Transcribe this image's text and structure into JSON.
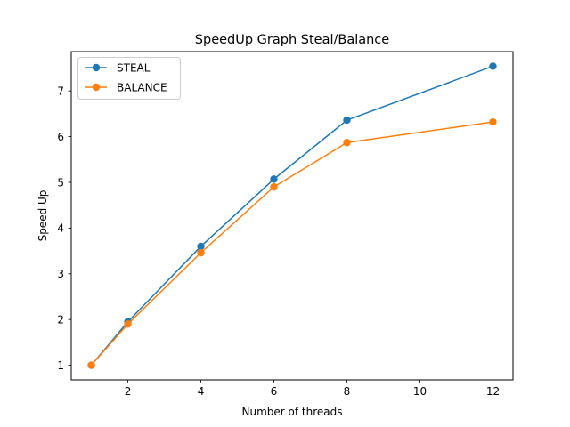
{
  "chart_data": {
    "type": "line",
    "title": "SpeedUp Graph Steal/Balance",
    "xlabel": "Number of threads",
    "ylabel": "Speed Up",
    "x": [
      1,
      2,
      4,
      6,
      8,
      12
    ],
    "xticks": [
      2,
      4,
      6,
      8,
      10,
      12
    ],
    "yticks": [
      1,
      2,
      3,
      4,
      5,
      6,
      7
    ],
    "xlim": [
      0.45,
      12.55
    ],
    "ylim": [
      0.68,
      7.86
    ],
    "grid": false,
    "legend_position": "top-left",
    "series": [
      {
        "name": "STEAL",
        "color": "#1f77b4",
        "values": [
          1.0,
          1.95,
          3.6,
          5.07,
          6.36,
          7.54
        ]
      },
      {
        "name": "BALANCE",
        "color": "#ff7f0e",
        "values": [
          1.0,
          1.9,
          3.46,
          4.9,
          5.87,
          6.32
        ]
      }
    ]
  }
}
